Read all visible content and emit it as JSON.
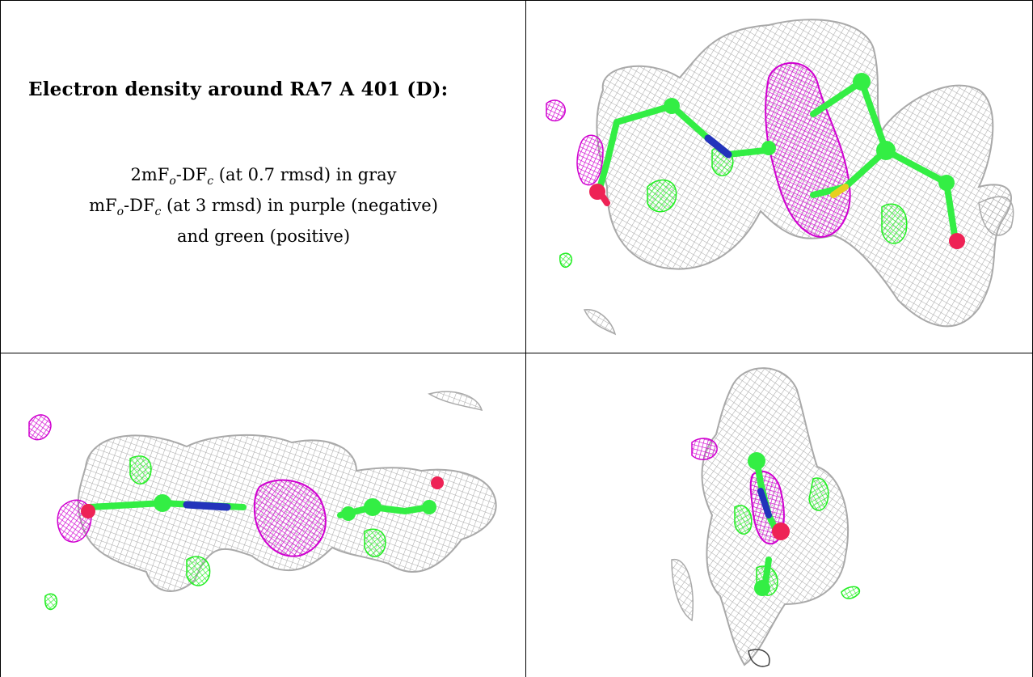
{
  "panel_text": {
    "title": "Electron density around RA7 A 401 (D):",
    "line1_prefix": "2mF",
    "line1_sub1": "o",
    "line1_mid": "-DF",
    "line1_sub2": "c",
    "line1_suffix": " (at 0.7 rmsd) in gray",
    "line2_prefix": "mF",
    "line2_sub1": "o",
    "line2_mid": "-DF",
    "line2_sub2": "c",
    "line2_suffix": " (at 3 rmsd) in purple (negative)",
    "line3": "and green (positive)"
  },
  "colors": {
    "mesh_gray": "#a9a9a9",
    "negative_purple": "#d000d0",
    "positive_green": "#22ee22",
    "carbon_green": "#33ee44",
    "oxygen_red": "#ee2255",
    "nitrogen_blue": "#2233bb",
    "sulfur_yellow": "#e8d020"
  },
  "panels": {
    "top_right": "density-view-1",
    "bottom_left": "density-view-2",
    "bottom_right": "density-view-3"
  }
}
